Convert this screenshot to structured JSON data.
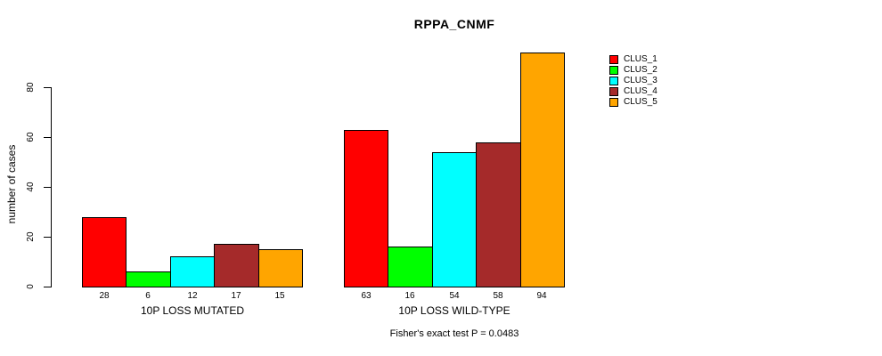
{
  "chart_data": {
    "type": "bar",
    "title": "RPPA_CNMF",
    "ylabel": "number of cases",
    "xlabel": "",
    "groups": [
      "10P LOSS MUTATED",
      "10P LOSS WILD-TYPE"
    ],
    "series": [
      {
        "name": "CLUS_1",
        "color": "#FF0000",
        "values": [
          28,
          63
        ]
      },
      {
        "name": "CLUS_2",
        "color": "#00FF00",
        "values": [
          6,
          16
        ]
      },
      {
        "name": "CLUS_3",
        "color": "#00FFFF",
        "values": [
          12,
          54
        ]
      },
      {
        "name": "CLUS_4",
        "color": "#A52A2A",
        "values": [
          17,
          58
        ]
      },
      {
        "name": "CLUS_5",
        "color": "#FFA500",
        "values": [
          15,
          94
        ]
      }
    ],
    "yticks": [
      0,
      20,
      40,
      60,
      80
    ],
    "ylim": [
      0,
      94
    ],
    "grid": false,
    "show_value_labels_under_bars": true,
    "legend_position": "right",
    "bar_border_color": "#000000",
    "footnote": "Fisher's exact test P = 0.0483"
  }
}
